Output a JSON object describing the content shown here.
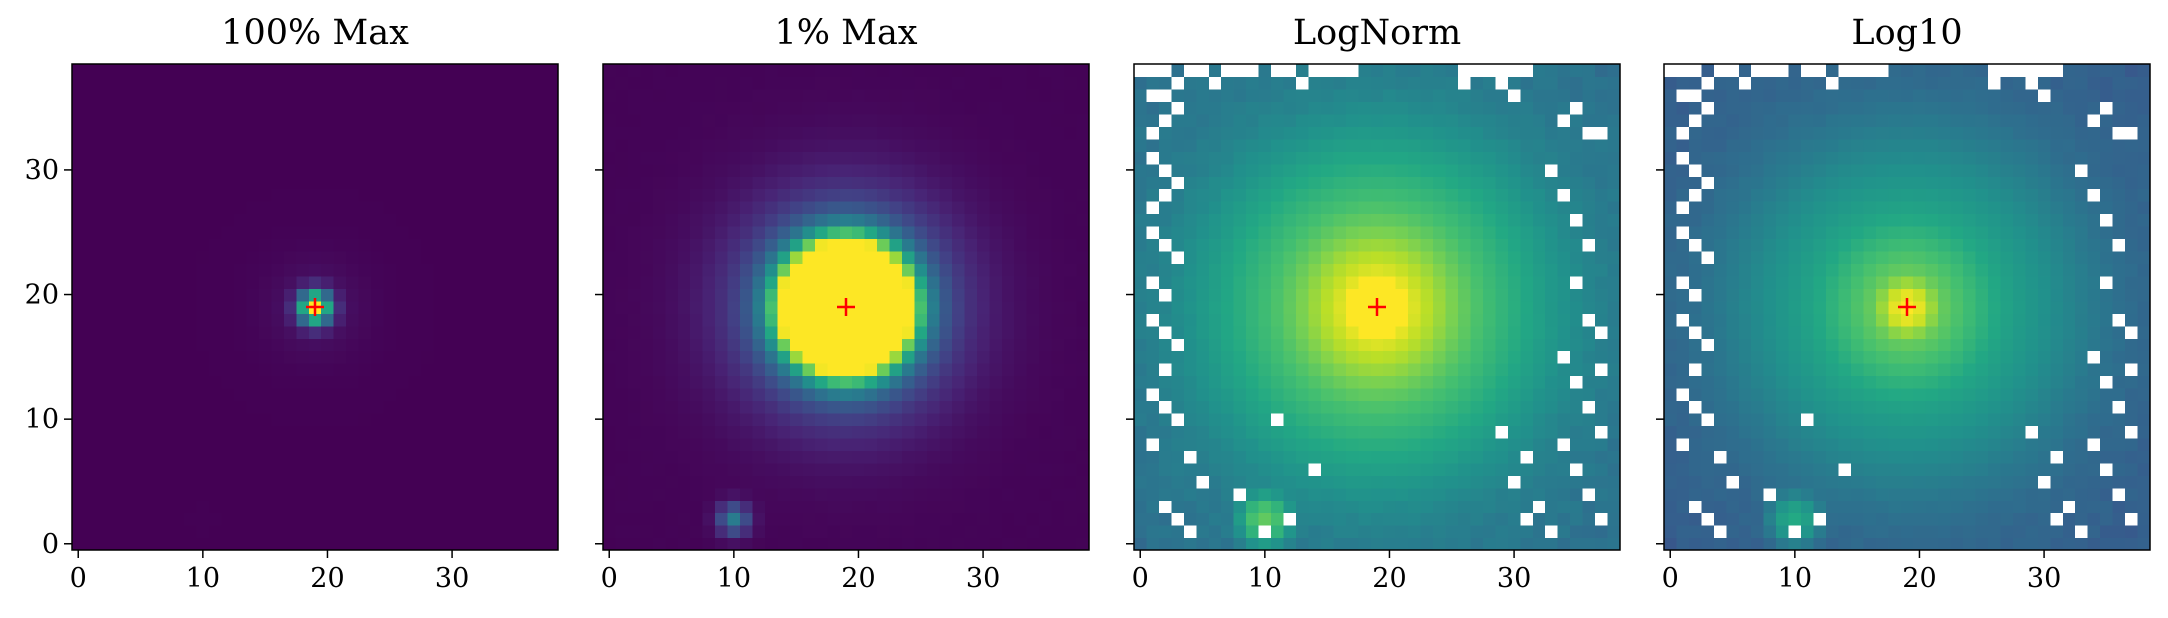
{
  "chart_data": [
    {
      "type": "heatmap",
      "title": "100% Max",
      "scale": "linear",
      "clip": 1.0,
      "colormap": "viridis",
      "grid": false,
      "nx": 39,
      "ny": 39,
      "xlim": [
        -0.5,
        38.5
      ],
      "ylim": [
        -0.5,
        38.5
      ],
      "xticks": [
        0,
        10,
        20,
        30
      ],
      "yticks": [
        0,
        10,
        20,
        30
      ],
      "show_ytick_labels": true,
      "marker": {
        "x": 19,
        "y": 19,
        "symbol": "+",
        "color": "#ff0000"
      },
      "masked_cells": []
    },
    {
      "type": "heatmap",
      "title": "1% Max",
      "scale": "linear",
      "clip": 0.01,
      "colormap": "viridis",
      "grid": false,
      "nx": 39,
      "ny": 39,
      "xlim": [
        -0.5,
        38.5
      ],
      "ylim": [
        -0.5,
        38.5
      ],
      "xticks": [
        0,
        10,
        20,
        30
      ],
      "yticks": [
        0,
        10,
        20,
        30
      ],
      "show_ytick_labels": false,
      "marker": {
        "x": 19,
        "y": 19,
        "symbol": "+",
        "color": "#ff0000"
      },
      "masked_cells": []
    },
    {
      "type": "heatmap",
      "title": "LogNorm",
      "scale": "log",
      "log_range": [
        -6.0,
        -1.2
      ],
      "colormap": "viridis",
      "grid": false,
      "nx": 39,
      "ny": 39,
      "xlim": [
        -0.5,
        38.5
      ],
      "ylim": [
        -0.5,
        38.5
      ],
      "xticks": [
        0,
        10,
        20,
        30
      ],
      "yticks": [
        0,
        10,
        20,
        30
      ],
      "show_ytick_labels": false,
      "marker": {
        "x": 19,
        "y": 19,
        "symbol": "+",
        "color": "#ff0000"
      },
      "masked_cells": [
        [
          0,
          38
        ],
        [
          1,
          38
        ],
        [
          2,
          38
        ],
        [
          3,
          37
        ],
        [
          4,
          38
        ],
        [
          5,
          38
        ],
        [
          6,
          37
        ],
        [
          7,
          38
        ],
        [
          8,
          38
        ],
        [
          9,
          38
        ],
        [
          11,
          38
        ],
        [
          12,
          38
        ],
        [
          13,
          37
        ],
        [
          14,
          38
        ],
        [
          15,
          38
        ],
        [
          16,
          38
        ],
        [
          17,
          38
        ],
        [
          26,
          38
        ],
        [
          27,
          38
        ],
        [
          28,
          38
        ],
        [
          29,
          38
        ],
        [
          30,
          38
        ],
        [
          31,
          38
        ],
        [
          26,
          37
        ],
        [
          29,
          37
        ],
        [
          30,
          36
        ],
        [
          1,
          36
        ],
        [
          2,
          36
        ],
        [
          3,
          35
        ],
        [
          1,
          33
        ],
        [
          2,
          34
        ],
        [
          1,
          31
        ],
        [
          2,
          30
        ],
        [
          3,
          29
        ],
        [
          1,
          27
        ],
        [
          2,
          28
        ],
        [
          1,
          25
        ],
        [
          2,
          24
        ],
        [
          3,
          23
        ],
        [
          1,
          21
        ],
        [
          2,
          20
        ],
        [
          1,
          18
        ],
        [
          2,
          17
        ],
        [
          3,
          16
        ],
        [
          2,
          14
        ],
        [
          1,
          12
        ],
        [
          2,
          11
        ],
        [
          3,
          10
        ],
        [
          4,
          7
        ],
        [
          5,
          5
        ],
        [
          2,
          3
        ],
        [
          3,
          2
        ],
        [
          4,
          1
        ],
        [
          1,
          8
        ],
        [
          33,
          30
        ],
        [
          34,
          28
        ],
        [
          35,
          26
        ],
        [
          36,
          24
        ],
        [
          35,
          21
        ],
        [
          36,
          18
        ],
        [
          34,
          15
        ],
        [
          35,
          13
        ],
        [
          36,
          11
        ],
        [
          37,
          9
        ],
        [
          34,
          8
        ],
        [
          35,
          6
        ],
        [
          36,
          4
        ],
        [
          37,
          2
        ],
        [
          32,
          3
        ],
        [
          33,
          1
        ],
        [
          31,
          2
        ],
        [
          36,
          33
        ],
        [
          35,
          35
        ],
        [
          34,
          34
        ],
        [
          37,
          33
        ],
        [
          30,
          5
        ],
        [
          31,
          7
        ],
        [
          29,
          9
        ],
        [
          12,
          2
        ],
        [
          14,
          6
        ],
        [
          10,
          1
        ],
        [
          11,
          10
        ],
        [
          8,
          4
        ],
        [
          37,
          17
        ],
        [
          37,
          14
        ]
      ]
    },
    {
      "type": "heatmap",
      "title": "Log10",
      "scale": "log",
      "log_range": [
        -6.0,
        0.0
      ],
      "colormap": "viridis",
      "grid": false,
      "nx": 39,
      "ny": 39,
      "xlim": [
        -0.5,
        38.5
      ],
      "ylim": [
        -0.5,
        38.5
      ],
      "xticks": [
        0,
        10,
        20,
        30
      ],
      "yticks": [
        0,
        10,
        20,
        30
      ],
      "show_ytick_labels": false,
      "marker": {
        "x": 19,
        "y": 19,
        "symbol": "+",
        "color": "#ff0000"
      },
      "masked_cells": [
        [
          0,
          38
        ],
        [
          1,
          38
        ],
        [
          2,
          38
        ],
        [
          3,
          37
        ],
        [
          4,
          38
        ],
        [
          5,
          38
        ],
        [
          6,
          37
        ],
        [
          7,
          38
        ],
        [
          8,
          38
        ],
        [
          9,
          38
        ],
        [
          11,
          38
        ],
        [
          12,
          38
        ],
        [
          13,
          37
        ],
        [
          14,
          38
        ],
        [
          15,
          38
        ],
        [
          16,
          38
        ],
        [
          17,
          38
        ],
        [
          26,
          38
        ],
        [
          27,
          38
        ],
        [
          28,
          38
        ],
        [
          29,
          38
        ],
        [
          30,
          38
        ],
        [
          31,
          38
        ],
        [
          26,
          37
        ],
        [
          29,
          37
        ],
        [
          30,
          36
        ],
        [
          1,
          36
        ],
        [
          2,
          36
        ],
        [
          3,
          35
        ],
        [
          1,
          33
        ],
        [
          2,
          34
        ],
        [
          1,
          31
        ],
        [
          2,
          30
        ],
        [
          3,
          29
        ],
        [
          1,
          27
        ],
        [
          2,
          28
        ],
        [
          1,
          25
        ],
        [
          2,
          24
        ],
        [
          3,
          23
        ],
        [
          1,
          21
        ],
        [
          2,
          20
        ],
        [
          1,
          18
        ],
        [
          2,
          17
        ],
        [
          3,
          16
        ],
        [
          2,
          14
        ],
        [
          1,
          12
        ],
        [
          2,
          11
        ],
        [
          3,
          10
        ],
        [
          4,
          7
        ],
        [
          5,
          5
        ],
        [
          2,
          3
        ],
        [
          3,
          2
        ],
        [
          4,
          1
        ],
        [
          1,
          8
        ],
        [
          33,
          30
        ],
        [
          34,
          28
        ],
        [
          35,
          26
        ],
        [
          36,
          24
        ],
        [
          35,
          21
        ],
        [
          36,
          18
        ],
        [
          34,
          15
        ],
        [
          35,
          13
        ],
        [
          36,
          11
        ],
        [
          37,
          9
        ],
        [
          34,
          8
        ],
        [
          35,
          6
        ],
        [
          36,
          4
        ],
        [
          37,
          2
        ],
        [
          32,
          3
        ],
        [
          33,
          1
        ],
        [
          31,
          2
        ],
        [
          36,
          33
        ],
        [
          35,
          35
        ],
        [
          34,
          34
        ],
        [
          37,
          33
        ],
        [
          30,
          5
        ],
        [
          31,
          7
        ],
        [
          29,
          9
        ],
        [
          12,
          2
        ],
        [
          14,
          6
        ],
        [
          10,
          1
        ],
        [
          11,
          10
        ],
        [
          8,
          4
        ],
        [
          37,
          17
        ],
        [
          37,
          14
        ]
      ]
    }
  ]
}
